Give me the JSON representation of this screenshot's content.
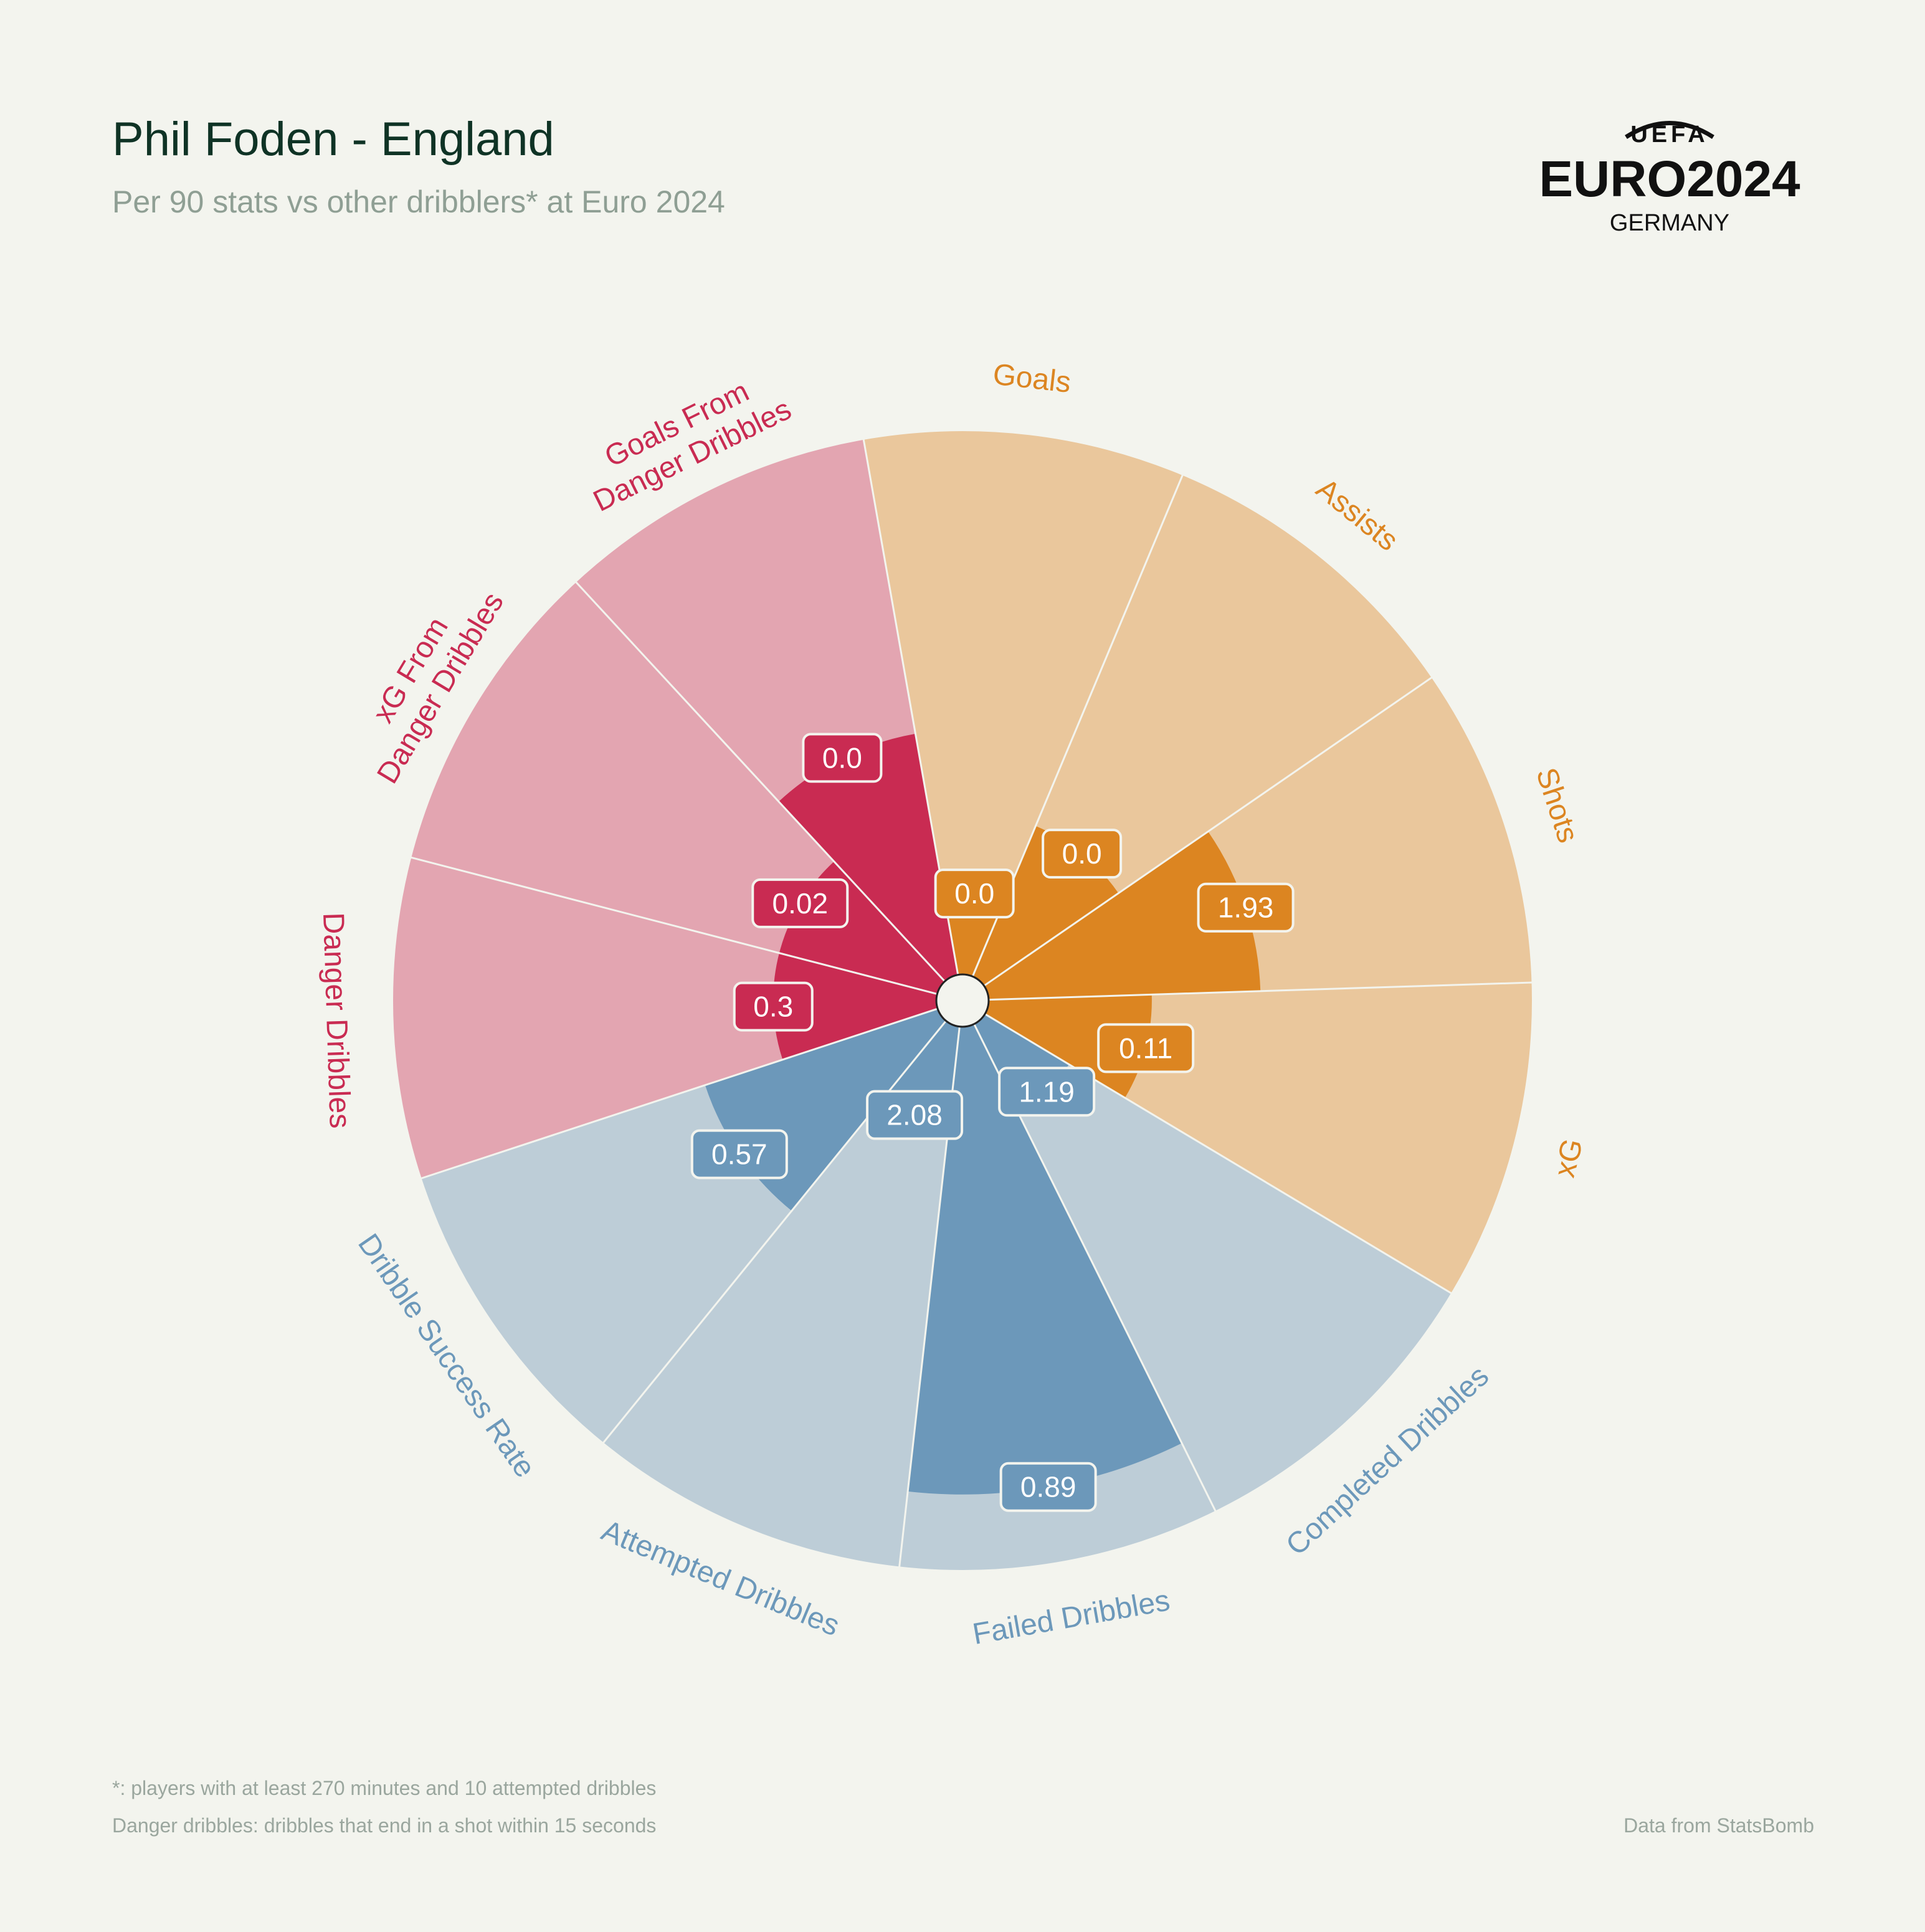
{
  "header": {
    "title": "Phil Foden - England",
    "subtitle": "Per 90 stats vs other dribblers* at Euro 2024"
  },
  "logo": {
    "top": "UEFA",
    "main": "EURO2024",
    "sub": "GERMANY"
  },
  "footer": {
    "note1": "*: players with at least 270 minutes and 10 attempted dribbles",
    "note2": "Danger dribbles: dribbles that end in a shot within 15 seconds",
    "source": "Data from StatsBomb"
  },
  "chart_data": {
    "type": "pizza",
    "scale_max": 100,
    "start_angle_deg": -10,
    "categories": [
      {
        "label": "Goals",
        "group": "attacking",
        "value": 0.0,
        "value_label": "0.0",
        "percentile": 15
      },
      {
        "label": "Assists",
        "group": "attacking",
        "value": 0.0,
        "value_label": "0.0",
        "percentile": 30
      },
      {
        "label": "Shots",
        "group": "attacking",
        "value": 1.93,
        "value_label": "1.93",
        "percentile": 50
      },
      {
        "label": "xG",
        "group": "attacking",
        "value": 0.11,
        "value_label": "0.11",
        "percentile": 30
      },
      {
        "label": "Completed Dribbles",
        "group": "dribbling",
        "value": 1.19,
        "value_label": "1.19",
        "percentile": 18
      },
      {
        "label": "Failed Dribbles",
        "group": "dribbling",
        "value": 0.89,
        "value_label": "0.89",
        "percentile": 86
      },
      {
        "label": "Attempted Dribbles",
        "group": "dribbling",
        "value": 2.08,
        "value_label": "2.08",
        "percentile": 18
      },
      {
        "label": "Dribble Success Rate",
        "group": "dribbling",
        "value": 0.57,
        "value_label": "0.57",
        "percentile": 45
      },
      {
        "label": "Danger Dribbles",
        "group": "danger",
        "value": 0.3,
        "value_label": "0.3",
        "percentile": 30
      },
      {
        "label": "xG From\nDanger Dribbles",
        "group": "danger",
        "value": 0.02,
        "value_label": "0.02",
        "percentile": 30
      },
      {
        "label": "Goals From\nDanger Dribbles",
        "group": "danger",
        "value": 0.0,
        "value_label": "0.0",
        "percentile": 45
      }
    ],
    "groups": {
      "attacking": {
        "fill": "#dc8521",
        "background": "#eac79c",
        "label_color": "#dc8521"
      },
      "dribbling": {
        "fill": "#6c98ba",
        "background": "#bdcdd7",
        "label_color": "#6c98ba"
      },
      "danger": {
        "fill": "#c92b52",
        "background": "#e3a5b1",
        "label_color": "#c92b52"
      }
    }
  }
}
